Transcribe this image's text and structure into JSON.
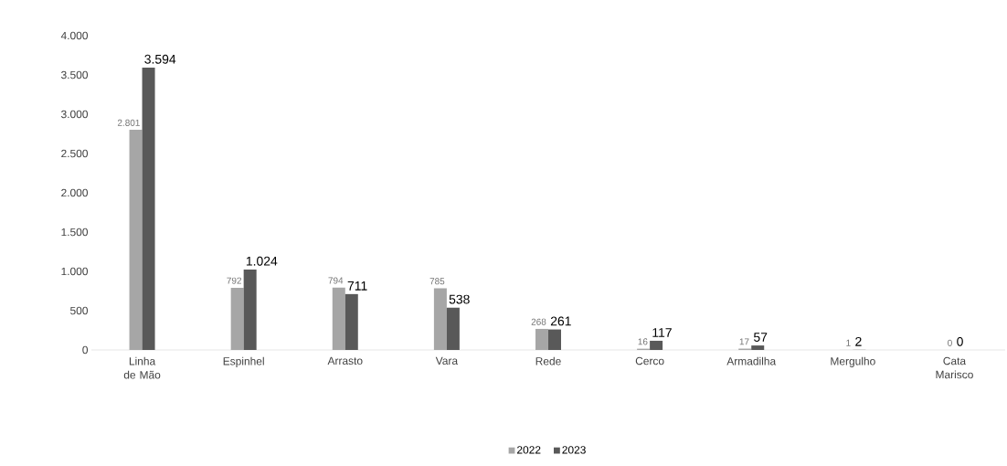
{
  "chart_data": {
    "type": "bar",
    "categories": [
      "Linha de Mão",
      "Espinhel",
      "Arrasto",
      "Vara",
      "Rede",
      "Cerco",
      "Armadilha",
      "Mergulho",
      "Cata Marisco"
    ],
    "series": [
      {
        "name": "2022",
        "color": "#a6a6a6",
        "values": [
          2801,
          792,
          794,
          785,
          268,
          16,
          17,
          1,
          0
        ],
        "value_labels": [
          "2.801",
          "792",
          "794",
          "785",
          "268",
          "16",
          "17",
          "1",
          "0"
        ]
      },
      {
        "name": "2023",
        "color": "#595959",
        "values": [
          3594,
          1024,
          711,
          538,
          261,
          117,
          57,
          2,
          0
        ],
        "value_labels": [
          "3.594",
          "1.024",
          "711",
          "538",
          "261",
          "117",
          "57",
          "2",
          "0"
        ]
      }
    ],
    "ylim": [
      0,
      4000
    ],
    "yticks": [
      {
        "value": 0,
        "label": "0"
      },
      {
        "value": 500,
        "label": "500"
      },
      {
        "value": 1000,
        "label": "1.000"
      },
      {
        "value": 1500,
        "label": "1.500"
      },
      {
        "value": 2000,
        "label": "2.000"
      },
      {
        "value": 2500,
        "label": "2.500"
      },
      {
        "value": 3000,
        "label": "3.000"
      },
      {
        "value": 3500,
        "label": "3.500"
      },
      {
        "value": 4000,
        "label": "4.000"
      }
    ],
    "legend": "bottom"
  }
}
